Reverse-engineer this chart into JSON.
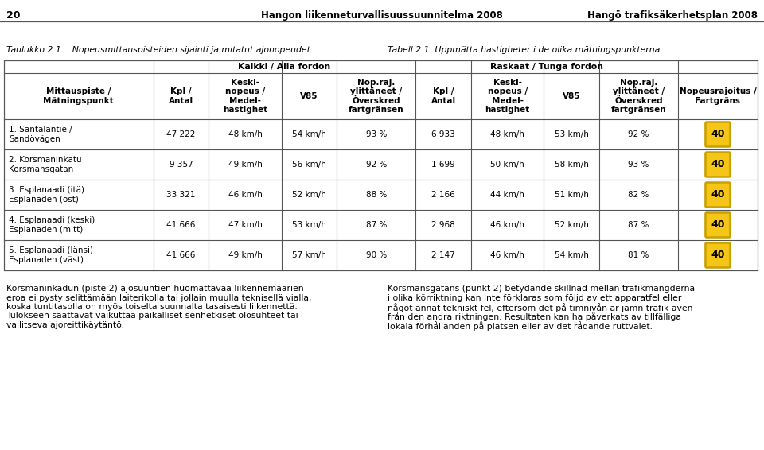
{
  "page_number": "20",
  "header_left": "Hangon liikenneturvallisuussuunnitelma 2008",
  "header_right": "Hangö trafiksäkerhetsplan 2008",
  "caption_left": "Taulukko 2.1    Nopeusmittauspisteiden sijainti ja mitatut ajonopeudet.",
  "caption_right": "Tabell 2.1  Uppmätta hastigheter i de olika mätningspunkterna.",
  "rows": [
    {
      "name": "1. Santalantie /\nSandövägen",
      "all_kpl": "47 222",
      "all_keski": "48 km/h",
      "all_v85": "54 km/h",
      "all_nop": "93 %",
      "rask_kpl": "6 933",
      "rask_keski": "48 km/h",
      "rask_v85": "53 km/h",
      "rask_nop": "92 %",
      "speed_limit": "40"
    },
    {
      "name": "2. Korsmaninkatu\nKorsmansgatan",
      "all_kpl": "9 357",
      "all_keski": "49 km/h",
      "all_v85": "56 km/h",
      "all_nop": "92 %",
      "rask_kpl": "1 699",
      "rask_keski": "50 km/h",
      "rask_v85": "58 km/h",
      "rask_nop": "93 %",
      "speed_limit": "40"
    },
    {
      "name": "3. Esplanaadi (itä)\nEsplanaden (öst)",
      "all_kpl": "33 321",
      "all_keski": "46 km/h",
      "all_v85": "52 km/h",
      "all_nop": "88 %",
      "rask_kpl": "2 166",
      "rask_keski": "44 km/h",
      "rask_v85": "51 km/h",
      "rask_nop": "82 %",
      "speed_limit": "40"
    },
    {
      "name": "4. Esplanaadi (keski)\nEsplanaden (mitt)",
      "all_kpl": "41 666",
      "all_keski": "47 km/h",
      "all_v85": "53 km/h",
      "all_nop": "87 %",
      "rask_kpl": "2 968",
      "rask_keski": "46 km/h",
      "rask_v85": "52 km/h",
      "rask_nop": "87 %",
      "speed_limit": "40"
    },
    {
      "name": "5. Esplanaadi (länsi)\nEsplanaden (väst)",
      "all_kpl": "41 666",
      "all_keski": "49 km/h",
      "all_v85": "57 km/h",
      "all_nop": "90 %",
      "rask_kpl": "2 147",
      "rask_keski": "46 km/h",
      "rask_v85": "54 km/h",
      "rask_nop": "81 %",
      "speed_limit": "40"
    }
  ],
  "footer_left_lines": [
    "Korsmaninkadun (piste 2) ajosuuntien huomattavaa liikennemäärien",
    "eroa ei pysty selittämään laiterikolla tai jollain muulla teknisellä vialla,",
    "koska tuntitasolla on myös toiselta suunnalta tasaisesti liikennettä.",
    "Tulokseen saattavat vaikuttaa paikalliset senhetkiset olosuhteet tai",
    "vallitseva ajoreittikäytäntö."
  ],
  "footer_right_lines": [
    "Korsmansgatans (punkt 2) betydande skillnad mellan trafikmängderna",
    "i olika körriktning kan inte förklaras som följd av ett apparatfel eller",
    "något annat tekniskt fel, eftersom det på timnivån är jämn trafik även",
    "från den andra riktningen. Resultaten kan ha påverkats av tillfälliga",
    "lokala förhållanden på platsen eller av det rådande ruttvalet."
  ],
  "speed_sign_bg": "#F5C518",
  "speed_sign_border": "#C8A000",
  "table_border_color": "#555555",
  "header_line_color": "#555555",
  "bg_color": "#ffffff",
  "text_color": "#000000"
}
